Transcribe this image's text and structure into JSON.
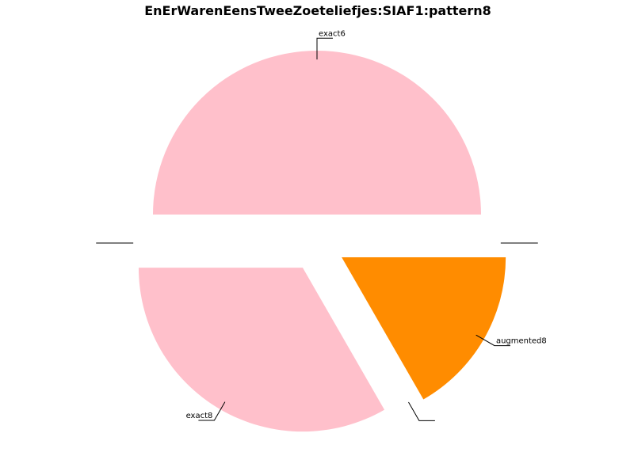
{
  "chart_data": {
    "type": "pie",
    "title": "EnErWarenEensTweeZoeteliefjes:SIAF1:pattern8",
    "slices": [
      {
        "label": "exact6",
        "value": 50,
        "color": "#ffc0cb",
        "exploded": true
      },
      {
        "label": "",
        "value": 0,
        "color": "#ffc0cb",
        "exploded": true
      },
      {
        "label": "exact8",
        "value": 33.3,
        "color": "#ffc0cb",
        "exploded": true
      },
      {
        "label": "",
        "value": 0,
        "color": "#ffc0cb",
        "exploded": true
      },
      {
        "label": "augmented8",
        "value": 16.7,
        "color": "#ff8c00",
        "exploded": true
      },
      {
        "label": "",
        "value": 0,
        "color": "#ffc0cb",
        "exploded": true
      }
    ]
  }
}
